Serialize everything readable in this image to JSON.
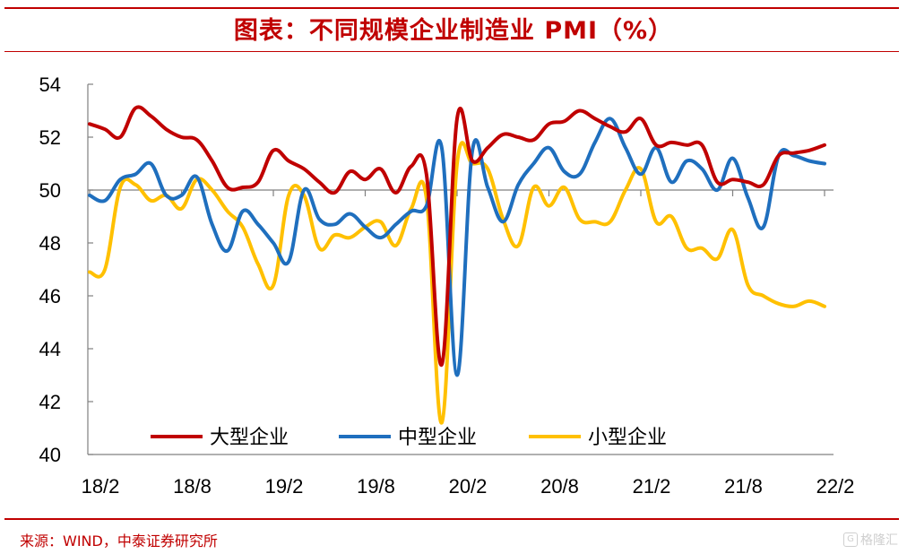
{
  "title": "图表：不同规模企业制造业 PMI（%）",
  "source": "来源：WIND，中泰证券研究所",
  "watermark": "格隆汇",
  "colors": {
    "frame": "#c00000",
    "large": "#c00000",
    "medium": "#1f6fbe",
    "small": "#ffc000",
    "axis": "#808080"
  },
  "chart_data": {
    "type": "line",
    "ylim": [
      40,
      54
    ],
    "yticks": [
      40,
      42,
      44,
      46,
      48,
      50,
      52,
      54
    ],
    "xtick_labels": [
      "18/2",
      "18/8",
      "19/2",
      "19/8",
      "20/2",
      "20/8",
      "21/2",
      "21/8",
      "22/2"
    ],
    "xtick_indices": [
      0,
      6,
      12,
      18,
      24,
      30,
      36,
      42,
      48
    ],
    "x": [
      "18/2",
      "18/3",
      "18/4",
      "18/5",
      "18/6",
      "18/7",
      "18/8",
      "18/9",
      "18/10",
      "18/11",
      "18/12",
      "19/1",
      "19/2",
      "19/3",
      "19/4",
      "19/5",
      "19/6",
      "19/7",
      "19/8",
      "19/9",
      "19/10",
      "19/11",
      "19/12",
      "20/1",
      "20/2",
      "20/3",
      "20/4",
      "20/5",
      "20/6",
      "20/7",
      "20/8",
      "20/9",
      "20/10",
      "20/11",
      "20/12",
      "21/1",
      "21/2",
      "21/3",
      "21/4",
      "21/5",
      "21/6",
      "21/7",
      "21/8",
      "21/9",
      "21/10",
      "21/11",
      "21/12",
      "22/1",
      "22/2"
    ],
    "baseline": 50,
    "series": [
      {
        "name": "大型企业",
        "color_key": "large",
        "values": [
          52.5,
          52.3,
          52.0,
          53.1,
          52.8,
          52.3,
          52.0,
          51.9,
          51.1,
          50.1,
          50.1,
          50.3,
          51.5,
          51.1,
          50.8,
          50.3,
          49.9,
          50.7,
          50.4,
          50.8,
          49.9,
          50.9,
          50.6,
          43.4,
          52.7,
          51.1,
          51.6,
          52.1,
          52.0,
          51.9,
          52.5,
          52.6,
          53.0,
          52.7,
          52.4,
          52.2,
          52.7,
          51.7,
          51.8,
          51.7,
          51.7,
          50.3,
          50.4,
          50.3,
          50.2,
          51.3,
          51.4,
          51.5,
          51.7
        ]
      },
      {
        "name": "中型企业",
        "color_key": "medium",
        "values": [
          49.8,
          49.6,
          50.4,
          50.6,
          51.0,
          49.8,
          49.8,
          50.5,
          48.7,
          47.7,
          49.2,
          48.7,
          48.0,
          47.3,
          50.0,
          48.9,
          48.7,
          49.1,
          48.6,
          48.2,
          48.7,
          49.2,
          49.4,
          51.6,
          43.0,
          51.5,
          50.1,
          48.8,
          50.2,
          51.0,
          51.6,
          50.7,
          50.6,
          51.8,
          52.7,
          51.6,
          50.6,
          51.6,
          50.3,
          51.1,
          50.8,
          50.0,
          51.2,
          49.7,
          48.6,
          51.3,
          51.3,
          51.1,
          51.0
        ]
      },
      {
        "name": "小型企业",
        "color_key": "small",
        "values": [
          46.9,
          47.0,
          50.1,
          50.2,
          49.6,
          49.8,
          49.3,
          50.4,
          50.0,
          49.2,
          48.6,
          47.2,
          46.4,
          49.8,
          49.8,
          47.8,
          48.3,
          48.2,
          48.6,
          48.8,
          47.9,
          49.3,
          49.7,
          41.2,
          51.0,
          51.0,
          50.8,
          48.9,
          47.9,
          50.1,
          49.4,
          50.1,
          48.9,
          48.8,
          48.8,
          50.0,
          50.8,
          48.8,
          49.0,
          47.8,
          47.8,
          47.4,
          48.5,
          46.4,
          46.0,
          45.7,
          45.6,
          45.8,
          45.6
        ]
      }
    ]
  }
}
